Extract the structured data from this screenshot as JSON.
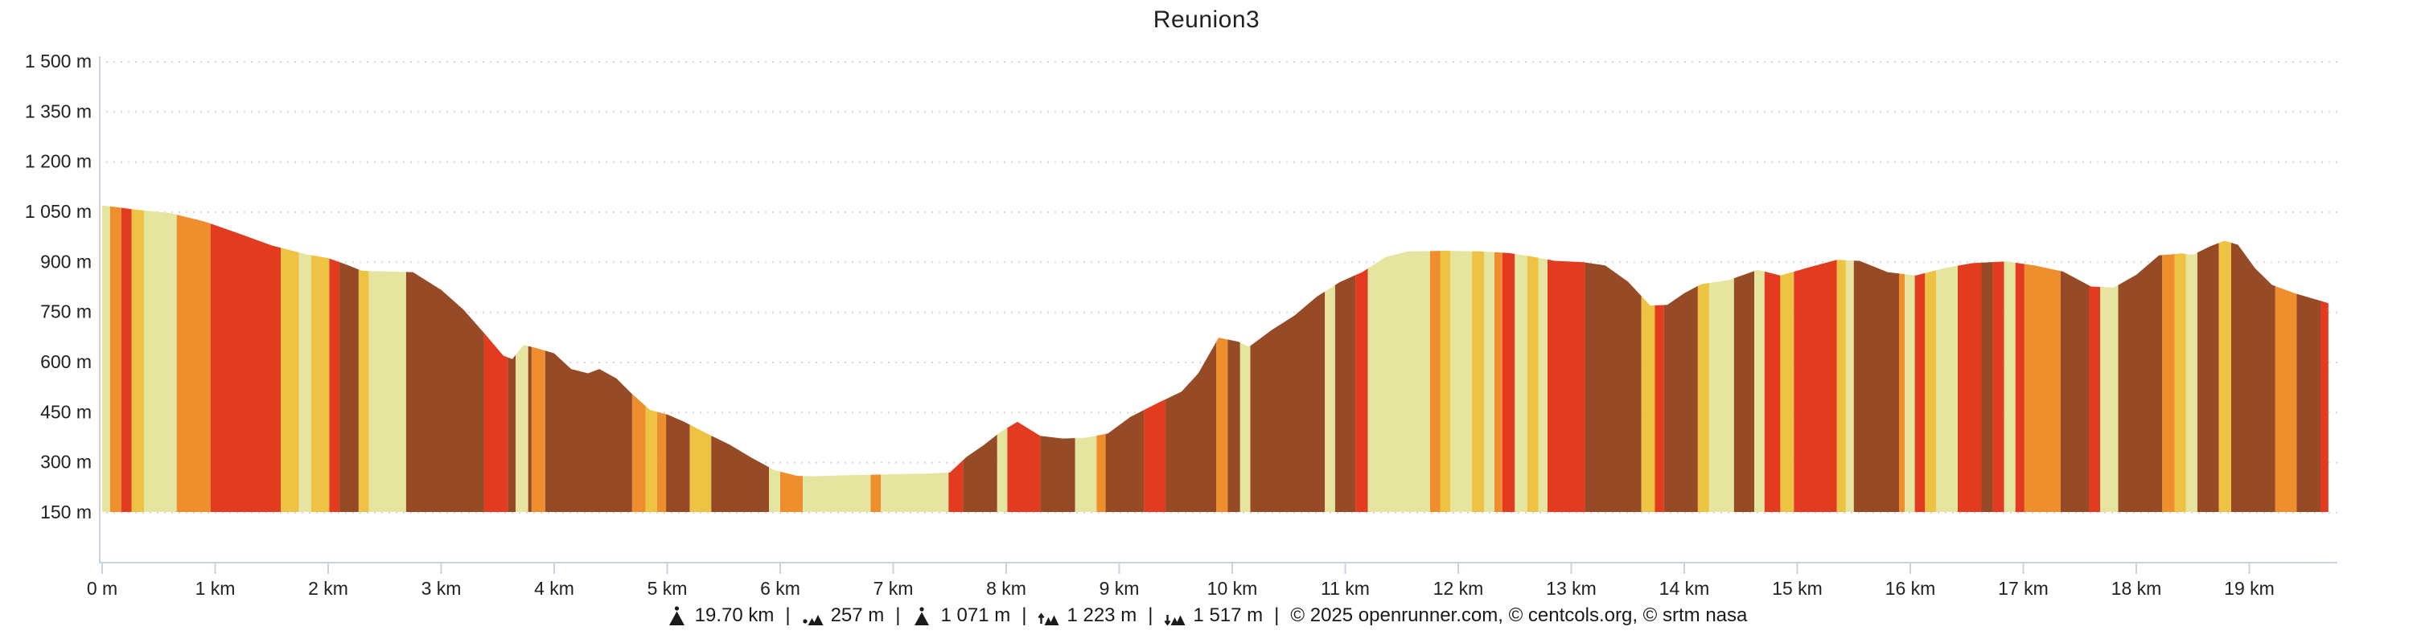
{
  "chart_data": {
    "type": "area",
    "title": "Reunion3",
    "xlabel": "",
    "ylabel": "",
    "x_unit": "km",
    "y_unit": "m",
    "xlim_km": [
      0,
      19.7
    ],
    "ylim_m": [
      150,
      1500
    ],
    "grid": "dotted-horizontal",
    "y_ticks": [
      {
        "value": 1500,
        "label": "1 500 m"
      },
      {
        "value": 1350,
        "label": "1 350 m"
      },
      {
        "value": 1200,
        "label": "1 200 m"
      },
      {
        "value": 1050,
        "label": "1 050 m"
      },
      {
        "value": 900,
        "label": "900 m"
      },
      {
        "value": 750,
        "label": "750 m"
      },
      {
        "value": 600,
        "label": "600 m"
      },
      {
        "value": 450,
        "label": "450 m"
      },
      {
        "value": 300,
        "label": "300 m"
      },
      {
        "value": 150,
        "label": "150 m"
      }
    ],
    "x_ticks": [
      {
        "value": 0,
        "label": "0 m"
      },
      {
        "value": 1,
        "label": "1 km"
      },
      {
        "value": 2,
        "label": "2 km"
      },
      {
        "value": 3,
        "label": "3 km"
      },
      {
        "value": 4,
        "label": "4 km"
      },
      {
        "value": 5,
        "label": "5 km"
      },
      {
        "value": 6,
        "label": "6 km"
      },
      {
        "value": 7,
        "label": "7 km"
      },
      {
        "value": 8,
        "label": "8 km"
      },
      {
        "value": 9,
        "label": "9 km"
      },
      {
        "value": 10,
        "label": "10 km"
      },
      {
        "value": 11,
        "label": "11 km"
      },
      {
        "value": 12,
        "label": "12 km"
      },
      {
        "value": 13,
        "label": "13 km"
      },
      {
        "value": 14,
        "label": "14 km"
      },
      {
        "value": 15,
        "label": "15 km"
      },
      {
        "value": 16,
        "label": "16 km"
      },
      {
        "value": 17,
        "label": "17 km"
      },
      {
        "value": 18,
        "label": "18 km"
      },
      {
        "value": 19,
        "label": "19 km"
      }
    ],
    "profile_m": [
      [
        0,
        1068
      ],
      [
        0.3,
        1055
      ],
      [
        0.6,
        1045
      ],
      [
        0.9,
        1020
      ],
      [
        1.2,
        985
      ],
      [
        1.5,
        948
      ],
      [
        1.8,
        922
      ],
      [
        2.0,
        910
      ],
      [
        2.15,
        892
      ],
      [
        2.3,
        872
      ],
      [
        2.75,
        868
      ],
      [
        3.0,
        815
      ],
      [
        3.2,
        755
      ],
      [
        3.4,
        678
      ],
      [
        3.55,
        618
      ],
      [
        3.63,
        608
      ],
      [
        3.73,
        650
      ],
      [
        3.85,
        640
      ],
      [
        4.0,
        625
      ],
      [
        4.15,
        578
      ],
      [
        4.3,
        565
      ],
      [
        4.4,
        578
      ],
      [
        4.55,
        550
      ],
      [
        4.7,
        500
      ],
      [
        4.85,
        455
      ],
      [
        5.0,
        442
      ],
      [
        5.15,
        420
      ],
      [
        5.35,
        385
      ],
      [
        5.55,
        352
      ],
      [
        5.75,
        312
      ],
      [
        5.95,
        275
      ],
      [
        6.15,
        258
      ],
      [
        6.3,
        257
      ],
      [
        6.6,
        260
      ],
      [
        7.0,
        263
      ],
      [
        7.3,
        265
      ],
      [
        7.5,
        268
      ],
      [
        7.65,
        315
      ],
      [
        7.8,
        350
      ],
      [
        7.95,
        390
      ],
      [
        8.1,
        420
      ],
      [
        8.3,
        378
      ],
      [
        8.5,
        370
      ],
      [
        8.7,
        372
      ],
      [
        8.9,
        385
      ],
      [
        9.1,
        435
      ],
      [
        9.35,
        478
      ],
      [
        9.55,
        510
      ],
      [
        9.7,
        565
      ],
      [
        9.88,
        672
      ],
      [
        10.05,
        660
      ],
      [
        10.15,
        645
      ],
      [
        10.35,
        695
      ],
      [
        10.55,
        738
      ],
      [
        10.75,
        795
      ],
      [
        10.95,
        838
      ],
      [
        11.15,
        868
      ],
      [
        11.35,
        912
      ],
      [
        11.55,
        930
      ],
      [
        11.9,
        932
      ],
      [
        12.2,
        930
      ],
      [
        12.45,
        925
      ],
      [
        12.65,
        915
      ],
      [
        12.85,
        902
      ],
      [
        13.1,
        898
      ],
      [
        13.3,
        888
      ],
      [
        13.5,
        840
      ],
      [
        13.7,
        768
      ],
      [
        13.85,
        770
      ],
      [
        14.0,
        805
      ],
      [
        14.15,
        832
      ],
      [
        14.4,
        845
      ],
      [
        14.65,
        875
      ],
      [
        14.85,
        858
      ],
      [
        15.1,
        882
      ],
      [
        15.35,
        905
      ],
      [
        15.55,
        902
      ],
      [
        15.8,
        868
      ],
      [
        16.05,
        858
      ],
      [
        16.3,
        880
      ],
      [
        16.55,
        895
      ],
      [
        16.85,
        900
      ],
      [
        17.1,
        888
      ],
      [
        17.35,
        870
      ],
      [
        17.6,
        825
      ],
      [
        17.8,
        822
      ],
      [
        18.0,
        860
      ],
      [
        18.2,
        918
      ],
      [
        18.4,
        924
      ],
      [
        18.5,
        920
      ],
      [
        18.65,
        945
      ],
      [
        18.78,
        962
      ],
      [
        18.9,
        950
      ],
      [
        19.05,
        880
      ],
      [
        19.2,
        830
      ],
      [
        19.4,
        805
      ],
      [
        19.55,
        790
      ],
      [
        19.7,
        775
      ]
    ],
    "gradient_colors": {
      "khaki": "#e6e5a0",
      "amber": "#eec243",
      "orange": "#ef8e2d",
      "red": "#e23b20",
      "brown": "#964b26"
    },
    "gradient_bands": [
      [
        0.0,
        0.07,
        "khaki"
      ],
      [
        0.07,
        0.17,
        "orange"
      ],
      [
        0.17,
        0.26,
        "red"
      ],
      [
        0.26,
        0.37,
        "amber"
      ],
      [
        0.37,
        0.66,
        "khaki"
      ],
      [
        0.66,
        0.96,
        "orange"
      ],
      [
        0.96,
        1.58,
        "red"
      ],
      [
        1.58,
        1.74,
        "amber"
      ],
      [
        1.74,
        1.85,
        "khaki"
      ],
      [
        1.85,
        2.01,
        "amber"
      ],
      [
        2.01,
        2.1,
        "red"
      ],
      [
        2.1,
        2.27,
        "brown"
      ],
      [
        2.27,
        2.36,
        "amber"
      ],
      [
        2.36,
        2.69,
        "khaki"
      ],
      [
        2.69,
        3.38,
        "brown"
      ],
      [
        3.38,
        3.59,
        "red"
      ],
      [
        3.59,
        3.66,
        "brown"
      ],
      [
        3.66,
        3.77,
        "khaki"
      ],
      [
        3.77,
        3.8,
        "brown"
      ],
      [
        3.8,
        3.92,
        "orange"
      ],
      [
        3.92,
        4.69,
        "brown"
      ],
      [
        4.69,
        4.81,
        "orange"
      ],
      [
        4.81,
        4.91,
        "amber"
      ],
      [
        4.91,
        4.99,
        "orange"
      ],
      [
        4.99,
        5.2,
        "brown"
      ],
      [
        5.2,
        5.39,
        "amber"
      ],
      [
        5.39,
        5.9,
        "brown"
      ],
      [
        5.9,
        6.0,
        "khaki"
      ],
      [
        6.0,
        6.2,
        "orange"
      ],
      [
        6.2,
        6.8,
        "khaki"
      ],
      [
        6.8,
        6.89,
        "orange"
      ],
      [
        6.89,
        7.49,
        "khaki"
      ],
      [
        7.49,
        7.62,
        "red"
      ],
      [
        7.62,
        7.92,
        "brown"
      ],
      [
        7.92,
        8.01,
        "khaki"
      ],
      [
        8.01,
        8.3,
        "red"
      ],
      [
        8.3,
        8.61,
        "brown"
      ],
      [
        8.61,
        8.8,
        "khaki"
      ],
      [
        8.8,
        8.88,
        "orange"
      ],
      [
        8.88,
        9.22,
        "brown"
      ],
      [
        9.22,
        9.41,
        "red"
      ],
      [
        9.41,
        9.86,
        "brown"
      ],
      [
        9.86,
        9.96,
        "orange"
      ],
      [
        9.96,
        10.07,
        "brown"
      ],
      [
        10.07,
        10.16,
        "khaki"
      ],
      [
        10.16,
        10.82,
        "brown"
      ],
      [
        10.82,
        10.91,
        "khaki"
      ],
      [
        10.91,
        11.09,
        "brown"
      ],
      [
        11.09,
        11.2,
        "red"
      ],
      [
        11.2,
        11.75,
        "khaki"
      ],
      [
        11.75,
        11.84,
        "orange"
      ],
      [
        11.84,
        11.93,
        "amber"
      ],
      [
        11.93,
        12.12,
        "khaki"
      ],
      [
        12.12,
        12.23,
        "amber"
      ],
      [
        12.23,
        12.32,
        "khaki"
      ],
      [
        12.32,
        12.39,
        "orange"
      ],
      [
        12.39,
        12.5,
        "red"
      ],
      [
        12.5,
        12.61,
        "khaki"
      ],
      [
        12.61,
        12.71,
        "amber"
      ],
      [
        12.71,
        12.79,
        "khaki"
      ],
      [
        12.79,
        13.12,
        "red"
      ],
      [
        13.12,
        13.62,
        "brown"
      ],
      [
        13.62,
        13.74,
        "amber"
      ],
      [
        13.74,
        13.82,
        "red"
      ],
      [
        13.82,
        14.12,
        "brown"
      ],
      [
        14.12,
        14.22,
        "amber"
      ],
      [
        14.22,
        14.44,
        "khaki"
      ],
      [
        14.44,
        14.62,
        "brown"
      ],
      [
        14.62,
        14.71,
        "khaki"
      ],
      [
        14.71,
        14.85,
        "red"
      ],
      [
        14.85,
        14.97,
        "amber"
      ],
      [
        14.97,
        15.35,
        "red"
      ],
      [
        15.35,
        15.43,
        "amber"
      ],
      [
        15.43,
        15.5,
        "khaki"
      ],
      [
        15.5,
        15.9,
        "brown"
      ],
      [
        15.9,
        15.95,
        "orange"
      ],
      [
        15.95,
        16.04,
        "khaki"
      ],
      [
        16.04,
        16.13,
        "red"
      ],
      [
        16.13,
        16.23,
        "amber"
      ],
      [
        16.23,
        16.42,
        "khaki"
      ],
      [
        16.42,
        16.63,
        "red"
      ],
      [
        16.63,
        16.73,
        "brown"
      ],
      [
        16.73,
        16.83,
        "red"
      ],
      [
        16.83,
        16.93,
        "khaki"
      ],
      [
        16.93,
        17.01,
        "red"
      ],
      [
        17.01,
        17.33,
        "orange"
      ],
      [
        17.33,
        17.58,
        "brown"
      ],
      [
        17.58,
        17.68,
        "red"
      ],
      [
        17.68,
        17.84,
        "khaki"
      ],
      [
        17.84,
        18.23,
        "brown"
      ],
      [
        18.23,
        18.34,
        "orange"
      ],
      [
        18.34,
        18.44,
        "amber"
      ],
      [
        18.44,
        18.54,
        "khaki"
      ],
      [
        18.54,
        18.73,
        "brown"
      ],
      [
        18.73,
        18.84,
        "amber"
      ],
      [
        18.84,
        19.23,
        "brown"
      ],
      [
        19.23,
        19.42,
        "orange"
      ],
      [
        19.42,
        19.63,
        "brown"
      ],
      [
        19.63,
        19.7,
        "red"
      ]
    ]
  },
  "footer": {
    "separator": "|",
    "stats": [
      {
        "icon": "distance-mountain-icon",
        "value": "19.70 km"
      },
      {
        "icon": "min-altitude-icon",
        "value": "257 m"
      },
      {
        "icon": "max-altitude-icon",
        "value": "1 071 m"
      },
      {
        "icon": "elevation-gain-icon",
        "value": "1 223 m"
      },
      {
        "icon": "elevation-loss-icon",
        "value": "1 517 m"
      }
    ],
    "credits": "© 2025 openrunner.com, © centcols.org, © srtm nasa"
  },
  "colors": {
    "axis": "#c9d2e0",
    "grid": "#d8d8d8",
    "text": "#212121",
    "icon": "#1a1a1a"
  }
}
